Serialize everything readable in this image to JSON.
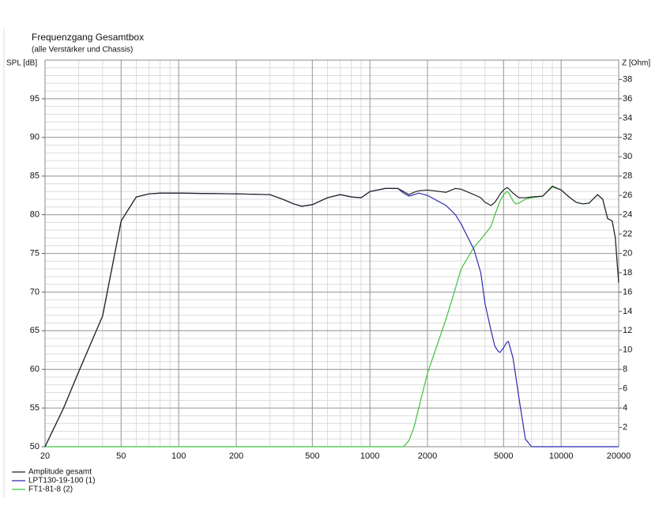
{
  "chart_data": {
    "type": "line",
    "title": "Frequenzgang Gesamtbox",
    "subtitle": "(alle Verstärker und Chassis)",
    "ylabel": "SPL [dB]",
    "y2label": "Z [Ohm]",
    "xscale": "log",
    "grid": true,
    "legend": "bottom-left",
    "x": [
      20,
      25,
      30,
      40,
      50,
      60,
      70,
      80,
      100,
      200,
      300,
      350,
      400,
      440,
      500,
      600,
      700,
      800,
      900,
      1000,
      1200,
      1400,
      1500,
      1600,
      1700,
      1800,
      2000,
      2500,
      2800,
      3000,
      3500,
      3800,
      4000,
      4300,
      4500,
      4700,
      4800,
      5000,
      5200,
      5300,
      5600,
      5800,
      6000,
      6500,
      7000,
      8000,
      9000,
      10000,
      11000,
      12000,
      13000,
      14000,
      15500,
      16500,
      17500,
      18500,
      19200,
      20000
    ],
    "series": [
      {
        "name": "Amplitude gesamt",
        "color": "#222222",
        "values": [
          50,
          55,
          59.7,
          66.9,
          79.2,
          82.3,
          82.7,
          82.8,
          82.8,
          82.7,
          82.6,
          82,
          81.4,
          81.1,
          81.3,
          82.2,
          82.6,
          82.3,
          82.2,
          83,
          83.4,
          83.4,
          83,
          82.6,
          82.9,
          83.1,
          83.2,
          82.9,
          83.4,
          83.3,
          82.6,
          82.2,
          81.6,
          81.2,
          81.6,
          82.3,
          82.7,
          83.2,
          83.5,
          83.4,
          82.8,
          82.5,
          82.2,
          82.2,
          82.3,
          82.4,
          83.7,
          83.2,
          82.3,
          81.6,
          81.4,
          81.5,
          82.6,
          82,
          79.5,
          79.2,
          77,
          71.2
        ]
      },
      {
        "name": "LPT130-19-100 (1)",
        "color": "#2b2bb0",
        "values": [
          50,
          55,
          59.7,
          66.9,
          79.2,
          82.3,
          82.7,
          82.8,
          82.8,
          82.7,
          82.6,
          82,
          81.4,
          81.1,
          81.3,
          82.2,
          82.6,
          82.3,
          82.2,
          83,
          83.4,
          83.4,
          82.8,
          82.4,
          82.6,
          82.8,
          82.5,
          81.2,
          80,
          78.8,
          75.5,
          72.5,
          68.5,
          65,
          63,
          62.3,
          62.2,
          62.8,
          63.5,
          63.6,
          61.5,
          59,
          56.5,
          51,
          50,
          50,
          50,
          50,
          50,
          50,
          50,
          50,
          50,
          50,
          50,
          50,
          50,
          50
        ]
      },
      {
        "name": "FT1-81-8 (2)",
        "color": "#3ec23e",
        "values": [
          50,
          50,
          50,
          50,
          50,
          50,
          50,
          50,
          50,
          50,
          50,
          50,
          50,
          50,
          50,
          50,
          50,
          50,
          50,
          50,
          50,
          50,
          50,
          50.8,
          52.5,
          55,
          59.5,
          66.5,
          70.5,
          73,
          75.8,
          76.8,
          77.5,
          78.5,
          80,
          81.2,
          81.8,
          82.6,
          83,
          82.9,
          81.8,
          81.4,
          81.5,
          82,
          82.2,
          82.4,
          83.6,
          83.2,
          82.3,
          81.6,
          81.4,
          81.5,
          82.6,
          82,
          79.5,
          79.2,
          77,
          71.2
        ]
      }
    ],
    "xlim": [
      20,
      20000
    ],
    "xticks": [
      20,
      50,
      100,
      200,
      500,
      1000,
      2000,
      5000,
      10000,
      20000
    ],
    "ylim": [
      50,
      100
    ],
    "yticks": [
      50,
      55,
      60,
      65,
      70,
      75,
      80,
      85,
      90,
      95
    ],
    "y2lim": [
      0,
      40
    ],
    "y2ticks": [
      2,
      4,
      6,
      8,
      10,
      12,
      14,
      16,
      18,
      20,
      22,
      24,
      26,
      28,
      30,
      32,
      34,
      36,
      38
    ]
  }
}
